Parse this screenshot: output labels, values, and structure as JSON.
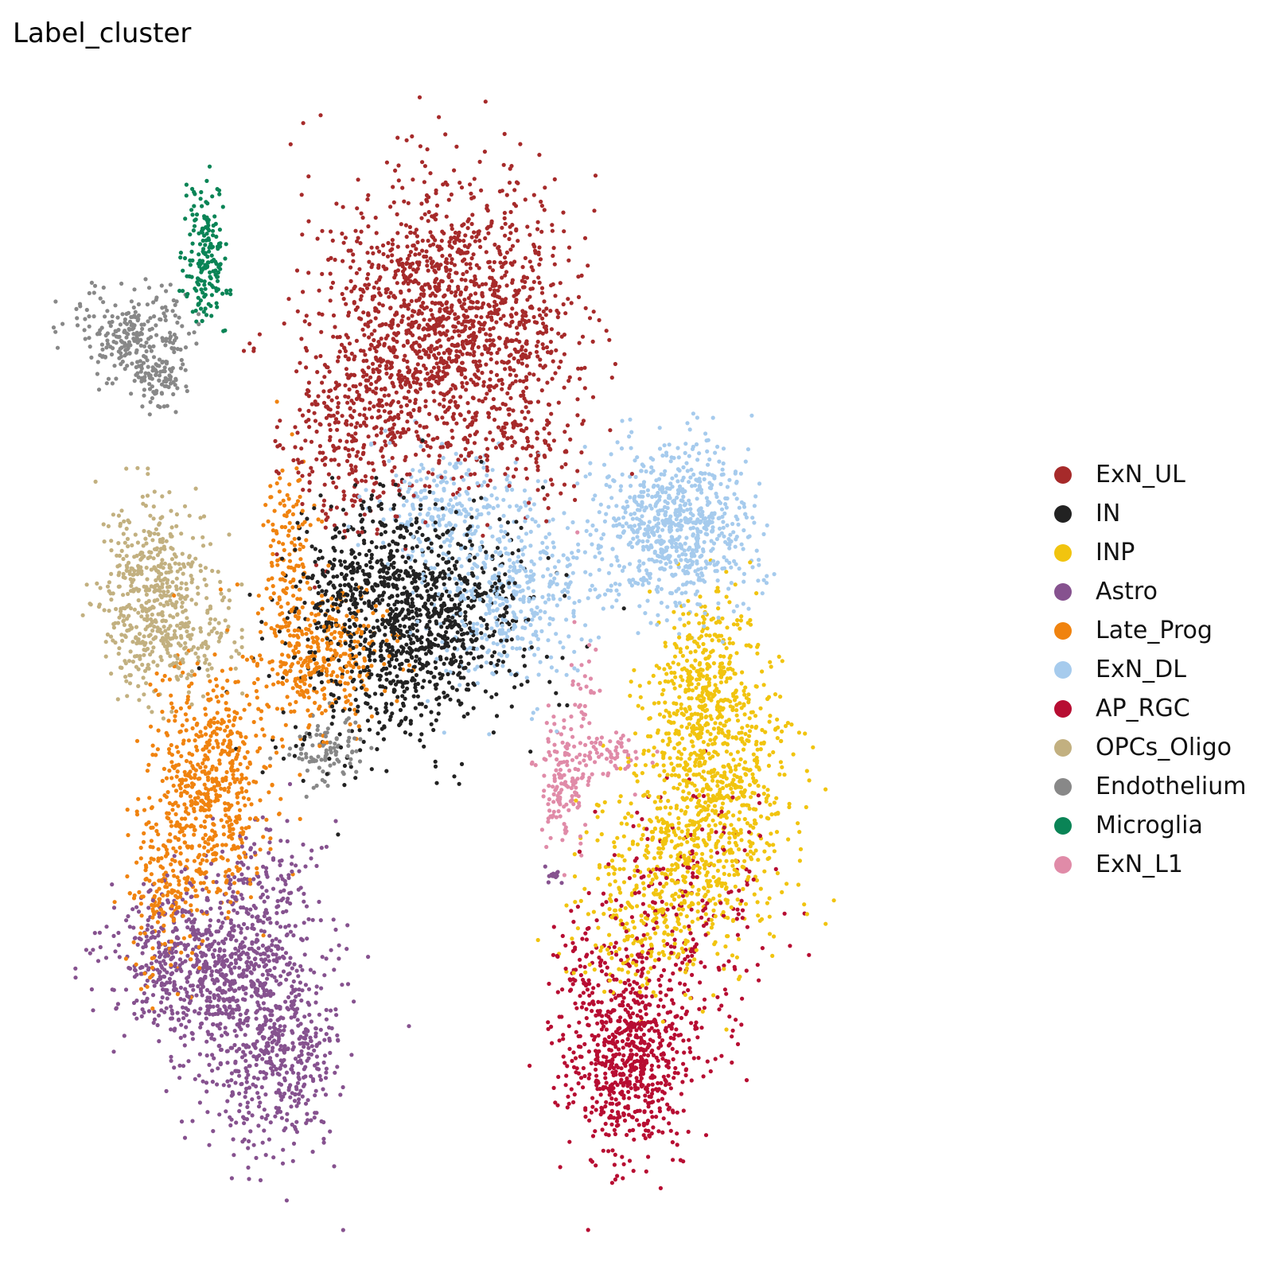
{
  "chart_data": {
    "type": "scatter",
    "title": "Label_cluster",
    "xlabel": "",
    "ylabel": "",
    "axes_visible": false,
    "grid": false,
    "legend_position": "right",
    "xlim": [
      0,
      100
    ],
    "ylim": [
      0,
      100
    ],
    "series": [
      {
        "name": "ExN_UL",
        "color": "#a62a2a",
        "clusters": [
          {
            "cx": 42.4,
            "cy": 79.8,
            "sx": 6.6,
            "sy": 6.2,
            "n": 1500
          },
          {
            "cx": 33.5,
            "cy": 70.5,
            "sx": 3.2,
            "sy": 4.5,
            "n": 260
          },
          {
            "cx": 28.0,
            "cy": 68.0,
            "sx": 1.8,
            "sy": 4.0,
            "n": 70
          },
          {
            "cx": 50.0,
            "cy": 69.0,
            "sx": 4.5,
            "sy": 2.5,
            "n": 90
          }
        ]
      },
      {
        "name": "IN",
        "color": "#222222",
        "clusters": [
          {
            "cx": 38.5,
            "cy": 53.0,
            "sx": 5.6,
            "sy": 4.6,
            "n": 1050
          },
          {
            "cx": 33.0,
            "cy": 58.0,
            "sx": 3.5,
            "sy": 3.5,
            "n": 160
          },
          {
            "cx": 28.0,
            "cy": 44.5,
            "sx": 4.5,
            "sy": 3.5,
            "n": 40
          }
        ]
      },
      {
        "name": "INP",
        "color": "#f1c40f",
        "clusters": [
          {
            "cx": 69.5,
            "cy": 49.0,
            "sx": 2.8,
            "sy": 3.5,
            "n": 280
          },
          {
            "cx": 70.5,
            "cy": 40.0,
            "sx": 4.2,
            "sy": 5.0,
            "n": 600
          },
          {
            "cx": 67.5,
            "cy": 31.0,
            "sx": 5.0,
            "sy": 4.0,
            "n": 450
          },
          {
            "cx": 63.0,
            "cy": 24.5,
            "sx": 3.5,
            "sy": 2.5,
            "n": 120
          }
        ]
      },
      {
        "name": "Astro",
        "color": "#86528f",
        "clusters": [
          {
            "cx": 15.5,
            "cy": 22.5,
            "sx": 5.0,
            "sy": 3.8,
            "n": 650
          },
          {
            "cx": 23.0,
            "cy": 15.5,
            "sx": 4.0,
            "sy": 5.0,
            "n": 600
          },
          {
            "cx": 22.0,
            "cy": 29.0,
            "sx": 3.0,
            "sy": 3.5,
            "n": 160
          },
          {
            "cx": 53.5,
            "cy": 30.5,
            "sx": 0.4,
            "sy": 0.5,
            "n": 12
          }
        ]
      },
      {
        "name": "Late_Prog",
        "color": "#f0830f",
        "clusters": [
          {
            "cx": 16.5,
            "cy": 38.5,
            "sx": 3.2,
            "sy": 5.5,
            "n": 600
          },
          {
            "cx": 28.5,
            "cy": 50.0,
            "sx": 3.5,
            "sy": 3.0,
            "n": 360
          },
          {
            "cx": 25.0,
            "cy": 59.5,
            "sx": 1.2,
            "sy": 4.0,
            "n": 120
          },
          {
            "cx": 11.5,
            "cy": 29.5,
            "sx": 2.0,
            "sy": 4.0,
            "n": 180
          }
        ]
      },
      {
        "name": "ExN_DL",
        "color": "#a6cbed",
        "clusters": [
          {
            "cx": 66.5,
            "cy": 61.5,
            "sx": 4.2,
            "sy": 3.8,
            "n": 750
          },
          {
            "cx": 48.5,
            "cy": 55.5,
            "sx": 4.5,
            "sy": 4.0,
            "n": 420
          },
          {
            "cx": 42.0,
            "cy": 63.5,
            "sx": 4.0,
            "sy": 2.5,
            "n": 220
          }
        ]
      },
      {
        "name": "AP_RGC",
        "color": "#b70d32",
        "clusters": [
          {
            "cx": 61.5,
            "cy": 14.5,
            "sx": 3.4,
            "sy": 4.4,
            "n": 700
          },
          {
            "cx": 67.0,
            "cy": 26.0,
            "sx": 5.0,
            "sy": 6.0,
            "n": 240
          },
          {
            "cx": 56.0,
            "cy": 22.5,
            "sx": 1.2,
            "sy": 2.5,
            "n": 40
          }
        ]
      },
      {
        "name": "OPCs_Oligo",
        "color": "#c2b080",
        "clusters": [
          {
            "cx": 10.5,
            "cy": 55.5,
            "sx": 2.8,
            "sy": 4.2,
            "n": 500
          },
          {
            "cx": 15.5,
            "cy": 51.5,
            "sx": 2.5,
            "sy": 2.5,
            "n": 80
          }
        ]
      },
      {
        "name": "Endothelium",
        "color": "#888888",
        "clusters": [
          {
            "cx": 8.5,
            "cy": 78.5,
            "sx": 3.2,
            "sy": 2.0,
            "n": 240
          },
          {
            "cx": 11.0,
            "cy": 75.0,
            "sx": 1.5,
            "sy": 1.5,
            "n": 80
          },
          {
            "cx": 29.5,
            "cy": 41.5,
            "sx": 2.0,
            "sy": 1.6,
            "n": 90
          }
        ]
      },
      {
        "name": "Microglia",
        "color": "#0a8456",
        "clusters": [
          {
            "cx": 16.0,
            "cy": 87.0,
            "sx": 1.2,
            "sy": 3.5,
            "n": 140
          },
          {
            "cx": 16.5,
            "cy": 83.0,
            "sx": 1.3,
            "sy": 1.5,
            "n": 40
          }
        ]
      },
      {
        "name": "ExN_L1",
        "color": "#e08ba8",
        "clusters": [
          {
            "cx": 54.5,
            "cy": 39.0,
            "sx": 1.1,
            "sy": 2.8,
            "n": 140
          },
          {
            "cx": 59.5,
            "cy": 41.5,
            "sx": 2.0,
            "sy": 1.2,
            "n": 60
          },
          {
            "cx": 57.0,
            "cy": 47.0,
            "sx": 1.0,
            "sy": 4.0,
            "n": 30
          }
        ]
      }
    ]
  }
}
